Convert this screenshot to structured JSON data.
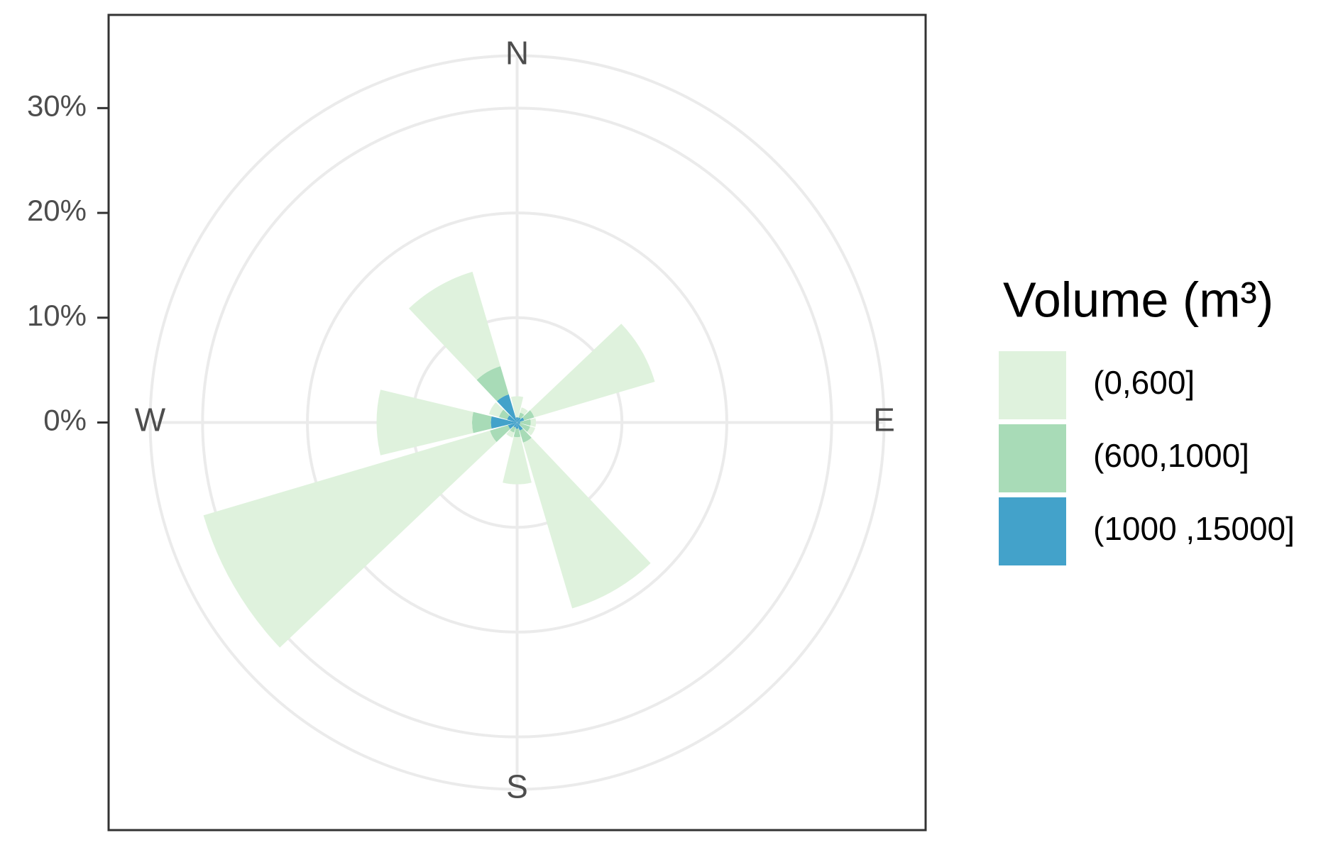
{
  "chart_data": {
    "type": "wind-rose",
    "categories": [
      "N",
      null,
      null,
      "E",
      null,
      null,
      "S",
      null,
      null,
      "W",
      null,
      null
    ],
    "series": [
      {
        "name": "(0,600]",
        "color": "#dff2dd",
        "values": [
          2,
          0.5,
          12,
          0.5,
          0.5,
          16.5,
          4.5,
          0.5,
          28.5,
          9.1,
          1,
          9.4
        ]
      },
      {
        "name": "(600,1000]",
        "color": "#a8dbb7",
        "values": [
          0,
          0.5,
          1,
          1,
          1,
          1.2,
          0.8,
          0.5,
          1.8,
          1.8,
          0.8,
          2.8
        ]
      },
      {
        "name": "(1000   ,15000]",
        "color": "#43a2ca",
        "values": [
          0.5,
          0.5,
          0.7,
          0.3,
          0.3,
          0.8,
          0.6,
          0.5,
          0.9,
          2.5,
          1,
          2.8
        ]
      }
    ],
    "legend_title": "Volume (m³)",
    "ylim": [
      0,
      35
    ],
    "yticks": [
      {
        "value": 0,
        "label": "0%"
      },
      {
        "value": 10,
        "label": "10%"
      },
      {
        "value": 20,
        "label": "20%"
      },
      {
        "value": 30,
        "label": "30%"
      }
    ],
    "grid": true
  }
}
